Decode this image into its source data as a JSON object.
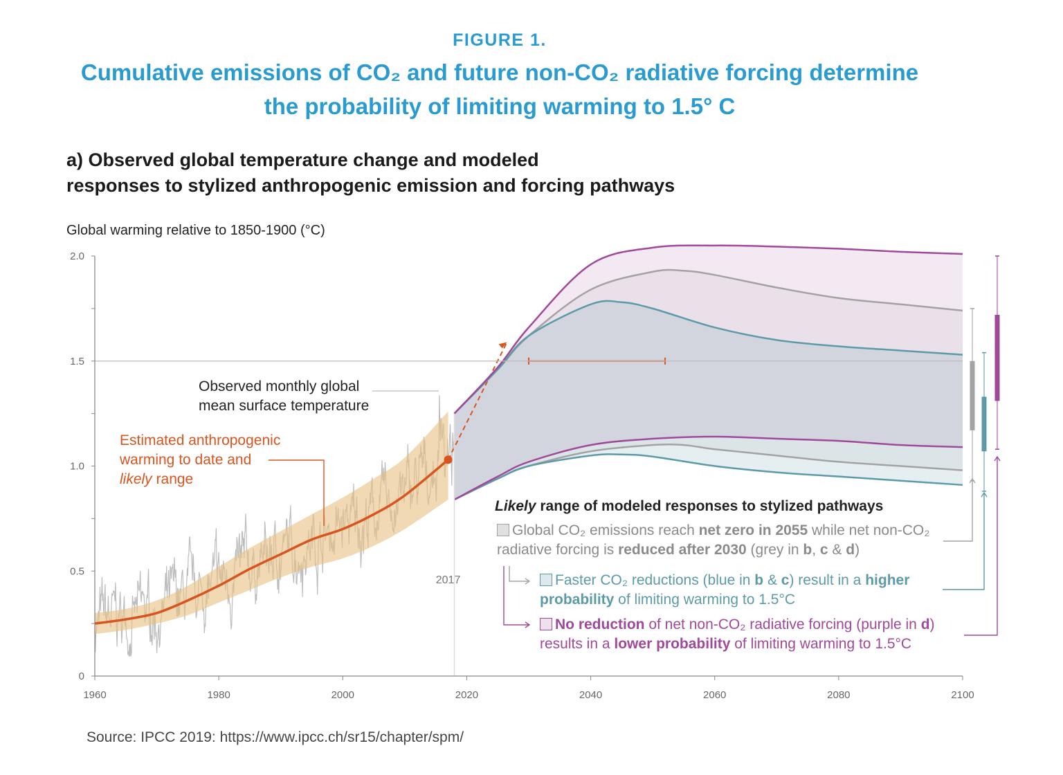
{
  "header": {
    "figure_label": "FIGURE 1.",
    "title_line1": "Cumulative emissions of CO₂ and future non-CO₂ radiative forcing determine",
    "title_line2": "the probability of limiting warming to 1.5° C",
    "panel_title_line1": "a) Observed global temperature change and modeled",
    "panel_title_line2": "responses to stylized anthropogenic emission and forcing pathways"
  },
  "source": "Source: IPCC 2019: https://www.ipcc.ch/sr15/chapter/spm/",
  "colors": {
    "title": "#2a9bd0",
    "orange": "#d9541e",
    "band": "#e6c080",
    "observed": "#bdbdbd",
    "grey": "#a3a3a3",
    "blue": "#5c9aa8",
    "purple": "#a0499a"
  },
  "chart_data": {
    "type": "line",
    "ylabel": "Global warming relative to 1850-1900 (°C)",
    "xlim": [
      1960,
      2100
    ],
    "ylim": [
      0,
      2.0
    ],
    "x_ticks": [
      "1960",
      "1980",
      "2000",
      "2020",
      "2040",
      "2060",
      "2080",
      "2100"
    ],
    "y_ticks": [
      "0",
      "0.5",
      "1.0",
      "1.5",
      "2.0"
    ],
    "reference_line": 1.5,
    "marker_year_label": "2017",
    "anthropogenic_warming": {
      "x": [
        1960,
        1965,
        1970,
        1975,
        1980,
        1985,
        1990,
        1995,
        2000,
        2005,
        2010,
        2017
      ],
      "y": [
        0.25,
        0.27,
        0.3,
        0.36,
        0.43,
        0.51,
        0.58,
        0.65,
        0.7,
        0.77,
        0.86,
        1.03
      ],
      "likely_low": [
        0.2,
        0.22,
        0.25,
        0.29,
        0.35,
        0.41,
        0.47,
        0.52,
        0.56,
        0.62,
        0.7,
        0.84
      ],
      "likely_high": [
        0.3,
        0.32,
        0.36,
        0.43,
        0.52,
        0.61,
        0.69,
        0.77,
        0.85,
        0.94,
        1.04,
        1.26
      ]
    },
    "projection_arrow": {
      "from": [
        2017,
        1.03
      ],
      "to": [
        2026.5,
        1.59
      ]
    },
    "crossing_range": {
      "x": [
        2030,
        2052
      ],
      "y": 1.5
    },
    "pathways": [
      {
        "name": "grey",
        "x": [
          2018,
          2025,
          2030,
          2040,
          2050,
          2055,
          2060,
          2070,
          2080,
          2090,
          2100
        ],
        "upper": [
          1.25,
          1.46,
          1.62,
          1.84,
          1.925,
          1.93,
          1.91,
          1.85,
          1.8,
          1.77,
          1.74
        ],
        "lower": [
          0.84,
          0.94,
          1.0,
          1.07,
          1.1,
          1.1,
          1.08,
          1.05,
          1.02,
          1.0,
          0.98
        ],
        "range_bar": {
          "whisker": [
            0.93,
            1.75
          ],
          "box": [
            1.17,
            1.5
          ]
        }
      },
      {
        "name": "blue",
        "x": [
          2018,
          2025,
          2030,
          2040,
          2045,
          2050,
          2060,
          2070,
          2080,
          2090,
          2100
        ],
        "upper": [
          1.25,
          1.46,
          1.62,
          1.77,
          1.78,
          1.75,
          1.66,
          1.6,
          1.57,
          1.55,
          1.53
        ],
        "lower": [
          0.84,
          0.94,
          1.0,
          1.05,
          1.055,
          1.045,
          1.0,
          0.97,
          0.95,
          0.93,
          0.91
        ],
        "range_bar": {
          "whisker": [
            0.88,
            1.54
          ],
          "box": [
            1.07,
            1.33
          ]
        }
      },
      {
        "name": "purple",
        "x": [
          2018,
          2025,
          2030,
          2040,
          2050,
          2060,
          2070,
          2080,
          2090,
          2100
        ],
        "upper": [
          1.25,
          1.47,
          1.66,
          1.96,
          2.04,
          2.05,
          2.045,
          2.035,
          2.02,
          2.01
        ],
        "lower": [
          0.84,
          0.95,
          1.02,
          1.1,
          1.13,
          1.14,
          1.13,
          1.12,
          1.1,
          1.09
        ],
        "range_bar": {
          "whisker": [
            1.08,
            2.0
          ],
          "box": [
            1.31,
            1.72
          ]
        }
      }
    ]
  },
  "annotations": {
    "observed": [
      "Observed monthly global",
      "mean surface temperature"
    ],
    "anthro_line1": "Estimated anthropogenic",
    "anthro_line2": "warming to date and",
    "anthro_likely": "likely",
    "anthro_range": " range"
  },
  "legend": {
    "title_italic": "Likely",
    "title_rest": " range of modeled responses to stylized pathways",
    "items": [
      {
        "color": "grey",
        "segments": [
          {
            "t": "Global CO₂ emissions reach ",
            "b": false
          },
          {
            "t": "net zero in 2055",
            "b": true
          },
          {
            "t": " while net non-CO₂ radiative forcing is ",
            "b": false
          },
          {
            "t": "reduced after 2030",
            "b": true
          },
          {
            "t": " (grey in ",
            "b": false
          },
          {
            "t": "b",
            "b": true
          },
          {
            "t": ", ",
            "b": false
          },
          {
            "t": "c",
            "b": true
          },
          {
            "t": " & ",
            "b": false
          },
          {
            "t": "d",
            "b": true
          },
          {
            "t": ")",
            "b": false
          }
        ]
      },
      {
        "color": "blue",
        "segments": [
          {
            "t": "Faster CO₂ reductions (blue in ",
            "b": false
          },
          {
            "t": "b",
            "b": true
          },
          {
            "t": " & ",
            "b": false
          },
          {
            "t": "c",
            "b": true
          },
          {
            "t": ") result in a ",
            "b": false
          },
          {
            "t": "higher probability",
            "b": true
          },
          {
            "t": " of limiting warming to 1.5°C",
            "b": false
          }
        ]
      },
      {
        "color": "purple",
        "segments": [
          {
            "t": "No reduction",
            "b": true
          },
          {
            "t": " of net non-CO₂ radiative forcing (purple in ",
            "b": false
          },
          {
            "t": "d",
            "b": true
          },
          {
            "t": ") results in a ",
            "b": false
          },
          {
            "t": "lower probability",
            "b": true
          },
          {
            "t": " of limiting warming to 1.5°C",
            "b": false
          }
        ]
      }
    ]
  }
}
